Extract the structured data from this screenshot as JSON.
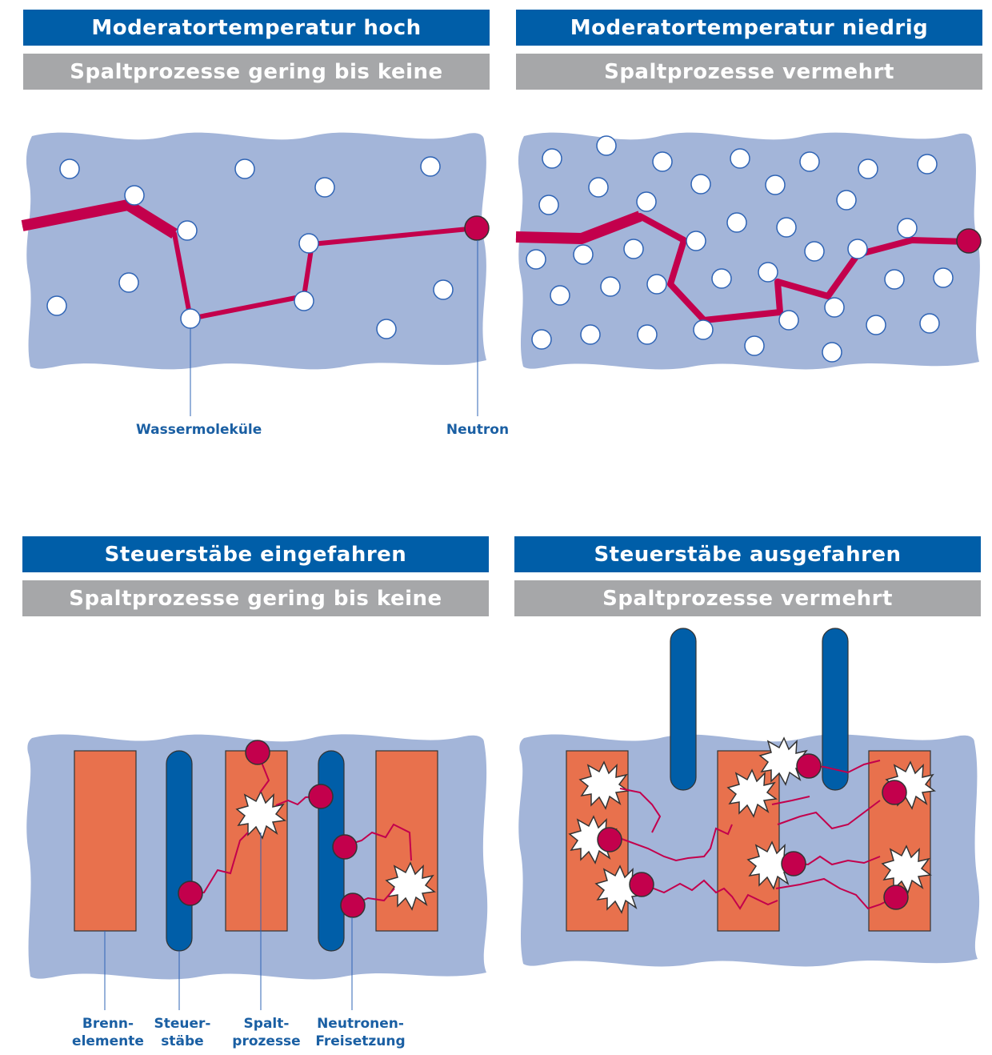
{
  "panels": {
    "top_left": {
      "title": "Moderatortemperatur hoch",
      "subtitle": "Spaltprozesse gering bis keine"
    },
    "top_right": {
      "title": "Moderatortemperatur niedrig",
      "subtitle": "Spaltprozesse vermehrt"
    },
    "bottom_left": {
      "title": "Steuerstäbe eingefahren",
      "subtitle": "Spaltprozesse gering bis keine"
    },
    "bottom_right": {
      "title": "Steuerstäbe ausgefahren",
      "subtitle": "Spaltprozesse vermehrt"
    }
  },
  "labels": {
    "water_molecules": "Wassermoleküle",
    "neutron": "Neutron",
    "fuel_1": "Brenn-",
    "fuel_2": "elemente",
    "rods_1": "Steuer-",
    "rods_2": "stäbe",
    "fission_1": "Spalt-",
    "fission_2": "prozesse",
    "release_1": "Neutronen-",
    "release_2": "Freisetzung"
  },
  "colors": {
    "header_blue": "#005ea8",
    "header_gray": "#a6a7a9",
    "moderator": "#a3b5d9",
    "neutron": "#c3004c",
    "fuel": "#e8714d",
    "control_rod": "#005ea8",
    "label": "#1a5fa3"
  }
}
